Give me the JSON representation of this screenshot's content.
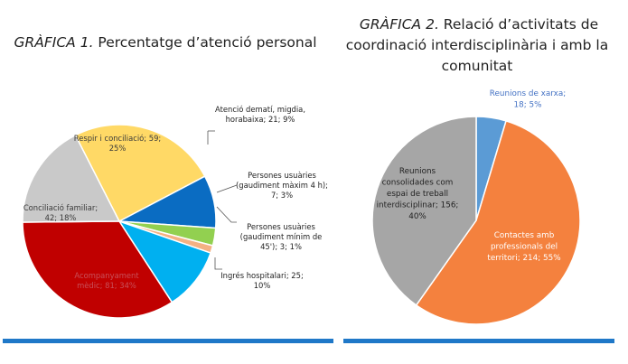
{
  "chart_data": [
    {
      "type": "pie",
      "title_prefix": "GRÀFICA 1.",
      "title_rest": " Percentatge d’atenció personal",
      "slices": [
        {
          "label": [
            "Respir i conciliació; 59;",
            "25%"
          ],
          "value": 59,
          "percent": 25,
          "color": "#ffd966",
          "label_color": "#3a3a3a"
        },
        {
          "label": [
            "Atenció dematí, migdia,",
            "horabaixa; 21; 9%"
          ],
          "value": 21,
          "percent": 9,
          "color": "#0a6cc2",
          "label_color": "#222222"
        },
        {
          "label": [
            "Persones usuàries",
            "(gaudiment màxim 4 h);",
            "7; 3%"
          ],
          "value": 7,
          "percent": 3,
          "color": "#92d050",
          "label_color": "#222222"
        },
        {
          "label": [
            "Persones usuàries",
            "(gaudiment mínim de",
            "45'); 3; 1%"
          ],
          "value": 3,
          "percent": 1,
          "color": "#f4b183",
          "label_color": "#222222"
        },
        {
          "label": [
            "Ingrés hospitalari; 25;",
            "10%"
          ],
          "value": 25,
          "percent": 10,
          "color": "#00b0f0",
          "label_color": "#222222"
        },
        {
          "label": [
            "Acompanyament",
            "mèdic; 81; 34%"
          ],
          "value": 81,
          "percent": 34,
          "color": "#c00000",
          "label_color": "#c8505a"
        },
        {
          "label": [
            "Conciliació familiar;",
            "42; 18%"
          ],
          "value": 42,
          "percent": 18,
          "color": "#c9c9c9",
          "label_color": "#3a3a3a"
        }
      ]
    },
    {
      "type": "pie",
      "title_prefix": "GRÀFICA 2.",
      "title_rest": " Relació d’activitats de",
      "title_lines": [
        "coordinació interdisciplinària i amb la",
        "comunitat"
      ],
      "slices": [
        {
          "label": [
            "Reunions de xarxa;",
            "18; 5%"
          ],
          "value": 18,
          "percent": 5,
          "color": "#5b9bd5",
          "label_color": "#4472c4"
        },
        {
          "label": [
            "Contactes amb",
            "professionals del",
            "territori; 214; 55%"
          ],
          "value": 214,
          "percent": 55,
          "color": "#f4813e",
          "label_color": "#ffffff"
        },
        {
          "label": [
            "Reunions",
            "consolidades com",
            "espai de treball",
            "interdisciplinar; 156;",
            "40%"
          ],
          "value": 156,
          "percent": 40,
          "color": "#a6a6a6",
          "label_color": "#222222"
        }
      ]
    }
  ],
  "colors": {
    "divider": "#1f78c8"
  }
}
